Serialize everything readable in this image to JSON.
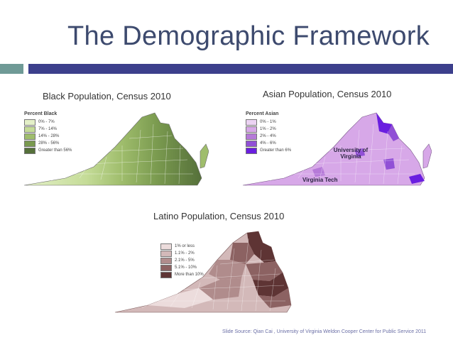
{
  "title": "The Demographic Framework",
  "panels": {
    "black": {
      "label": "Black Population, Census 2010",
      "legend_title": "Percent Black",
      "legend": [
        "0% - 7%",
        "7% - 14%",
        "14% - 28%",
        "28% - 56%",
        "Greater than 56%"
      ],
      "colors": [
        "#e4f0c8",
        "#c5dc98",
        "#9fbd6c",
        "#7a9a4f",
        "#55703a"
      ]
    },
    "asian": {
      "label": "Asian Population, Census 2010",
      "legend_title": "Percent Asian",
      "legend": [
        "0% - 1%",
        "1% - 2%",
        "2% - 4%",
        "4% - 6%",
        "Greater than 6%"
      ],
      "colors": [
        "#ecd3f3",
        "#d7a8e8",
        "#b67ad8",
        "#9150d6",
        "#6a1ee0"
      ],
      "annotations": [
        "University of Virginia",
        "Virginia Tech"
      ]
    },
    "latino": {
      "label": "Latino Population, Census 2010",
      "legend": [
        "1% or less",
        "1.1% - 2%",
        "2.1% - 5%",
        "5.1% - 10%",
        "More than 10%"
      ],
      "colors": [
        "#ecdcdc",
        "#d3b9b9",
        "#b08c8c",
        "#8c6262",
        "#5e3434"
      ]
    }
  },
  "source": "Slide Source: Qian Cai , University of Virginia Weldon Cooper Center for Public Service 2011",
  "accent_colors": {
    "title": "#3d4a6e",
    "bar_teal": "#6f9a96",
    "bar_navy": "#3c3f8c"
  }
}
